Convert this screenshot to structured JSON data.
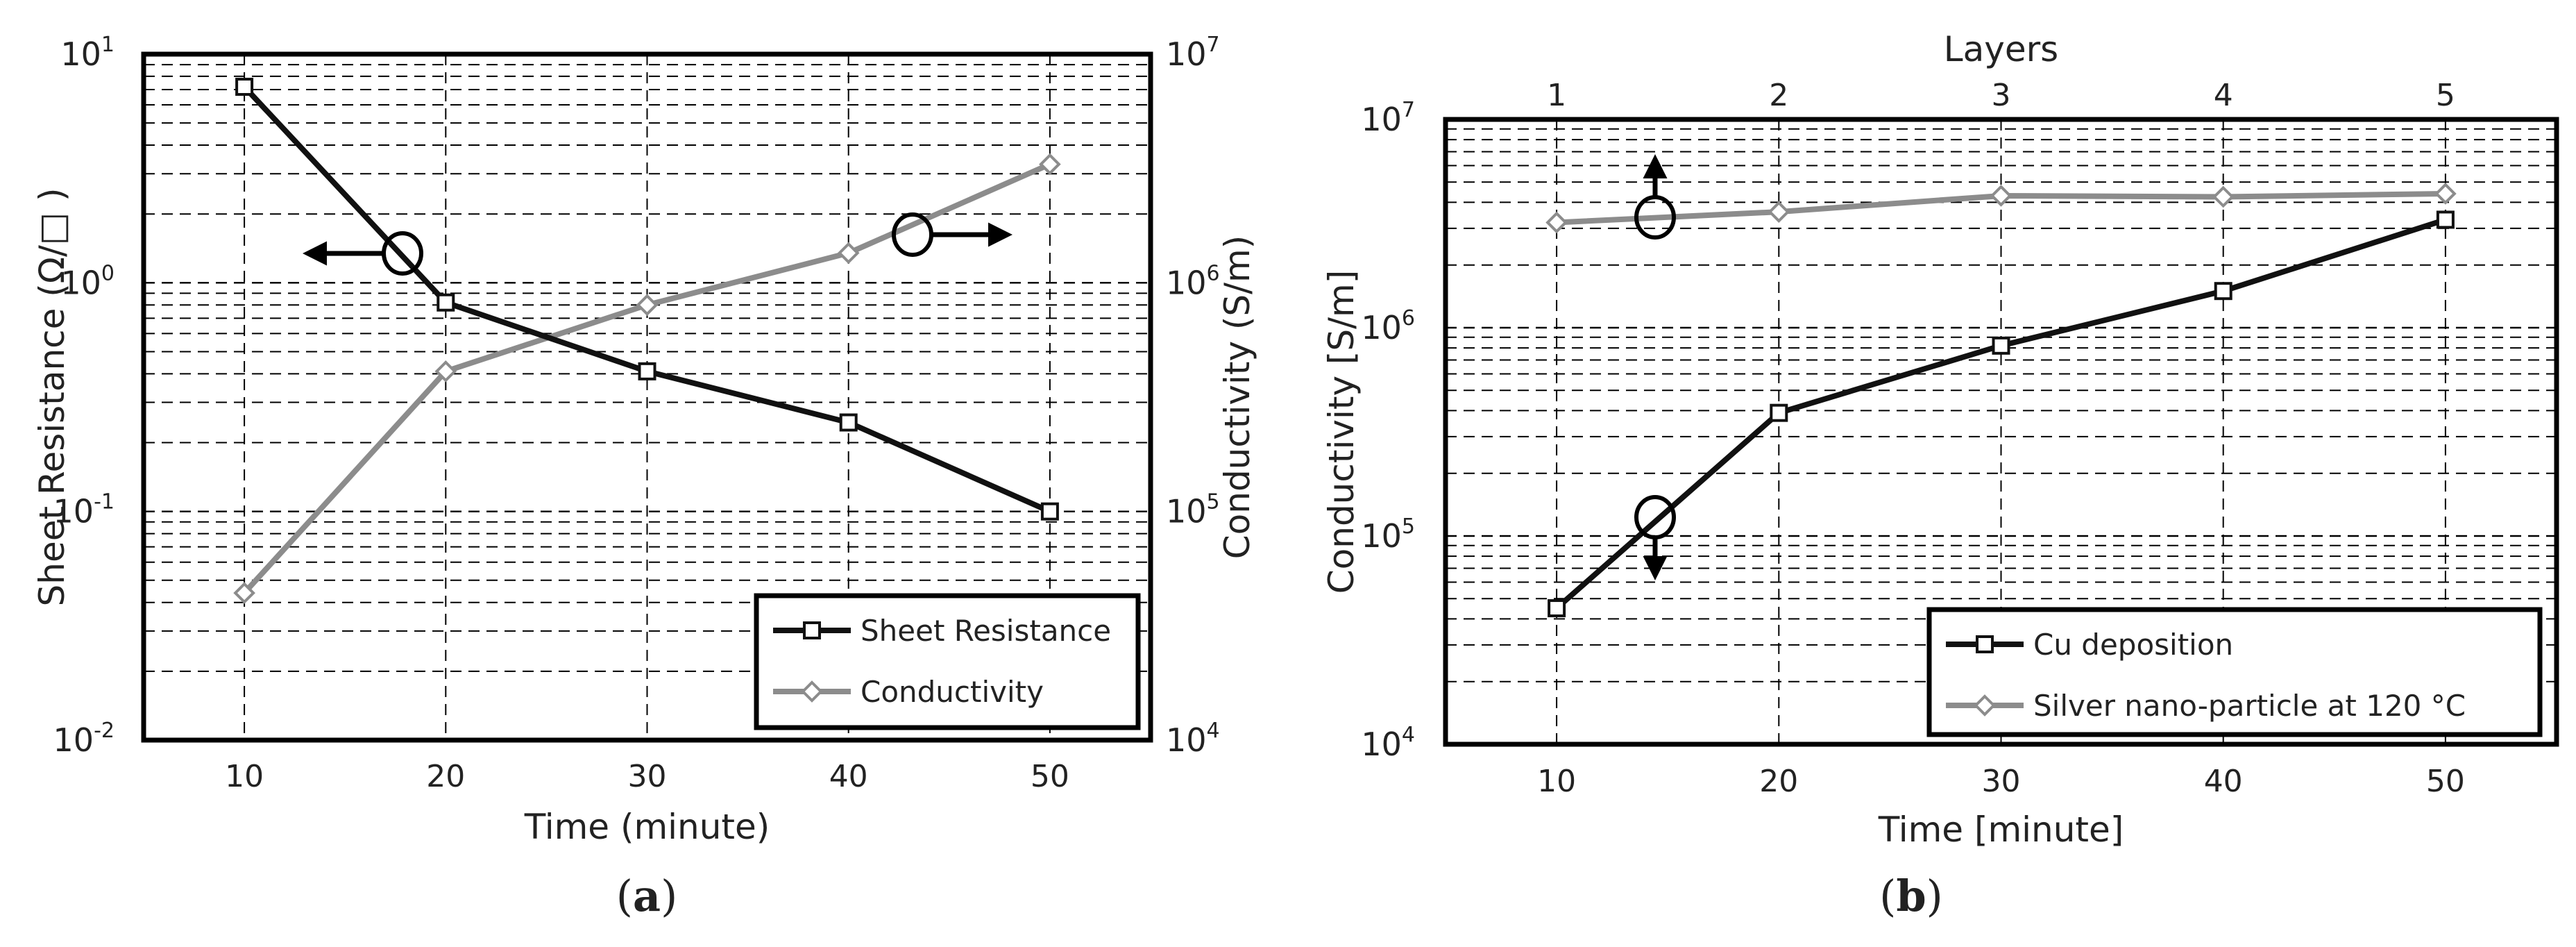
{
  "chart_data": [
    {
      "panel_id": "a",
      "caption": "(a)",
      "caption_letter": "a",
      "type": "line",
      "xlabel": "Time (minute)",
      "x": [
        10,
        20,
        30,
        40,
        50
      ],
      "xlim": [
        5,
        55
      ],
      "xticks": [
        10,
        20,
        30,
        40,
        50
      ],
      "ylabel_left": "Sheet Resistance (Ω/□ )",
      "ylim_left": [
        0.01,
        10
      ],
      "yticks_left": [
        {
          "base": "10",
          "exp": "-2"
        },
        {
          "base": "10",
          "exp": "-1"
        },
        {
          "base": "10",
          "exp": "0"
        },
        {
          "base": "10",
          "exp": "1"
        }
      ],
      "ylabel_right": "Conductivity (S/m)",
      "ylim_right": [
        10000,
        10000000
      ],
      "yticks_right": [
        {
          "base": "10",
          "exp": "4"
        },
        {
          "base": "10",
          "exp": "5"
        },
        {
          "base": "10",
          "exp": "6"
        },
        {
          "base": "10",
          "exp": "7"
        }
      ],
      "scale": "log",
      "grid": true,
      "series": [
        {
          "name": "Sheet Resistance",
          "axis": "left",
          "marker": "square",
          "color": "#111111",
          "values": [
            7.2,
            0.82,
            0.41,
            0.245,
            0.1
          ]
        },
        {
          "name": "Conductivity",
          "axis": "right",
          "marker": "diamond",
          "color": "#8c8c8c",
          "values": [
            44000,
            410000,
            800000,
            1350000,
            3300000
          ]
        }
      ],
      "legend_position": "bottom-right",
      "annotations": [
        {
          "type": "axis-indicator",
          "points_to": "left",
          "series": "Sheet Resistance"
        },
        {
          "type": "axis-indicator",
          "points_to": "right",
          "series": "Conductivity"
        }
      ]
    },
    {
      "panel_id": "b",
      "caption": "(b)",
      "caption_letter": "b",
      "type": "line",
      "xlabel": "Time [minute]",
      "x": [
        10,
        20,
        30,
        40,
        50
      ],
      "xlim": [
        5,
        55
      ],
      "xticks": [
        10,
        20,
        30,
        40,
        50
      ],
      "x2label": "Layers",
      "x2ticks": [
        "1",
        "2",
        "3",
        "4",
        "5"
      ],
      "ylabel": "Conductivity [S/m]",
      "ylim": [
        10000,
        10000000
      ],
      "yticks": [
        {
          "base": "10",
          "exp": "4"
        },
        {
          "base": "10",
          "exp": "5"
        },
        {
          "base": "10",
          "exp": "6"
        },
        {
          "base": "10",
          "exp": "7"
        }
      ],
      "scale": "log",
      "grid": true,
      "series": [
        {
          "name": "Cu deposition",
          "axis": "bottom",
          "marker": "square",
          "color": "#111111",
          "values": [
            45000,
            390000,
            820000,
            1500000,
            3300000
          ]
        },
        {
          "name": "Silver nano-particle at 120 °C",
          "axis": "top",
          "marker": "diamond",
          "color": "#8c8c8c",
          "values": [
            3200000,
            3600000,
            4300000,
            4250000,
            4400000
          ]
        }
      ],
      "legend_position": "bottom-right",
      "annotations": [
        {
          "type": "axis-indicator",
          "points_to": "top",
          "series": "Silver nano-particle at 120 °C"
        },
        {
          "type": "axis-indicator",
          "points_to": "bottom",
          "series": "Cu deposition"
        }
      ]
    }
  ]
}
